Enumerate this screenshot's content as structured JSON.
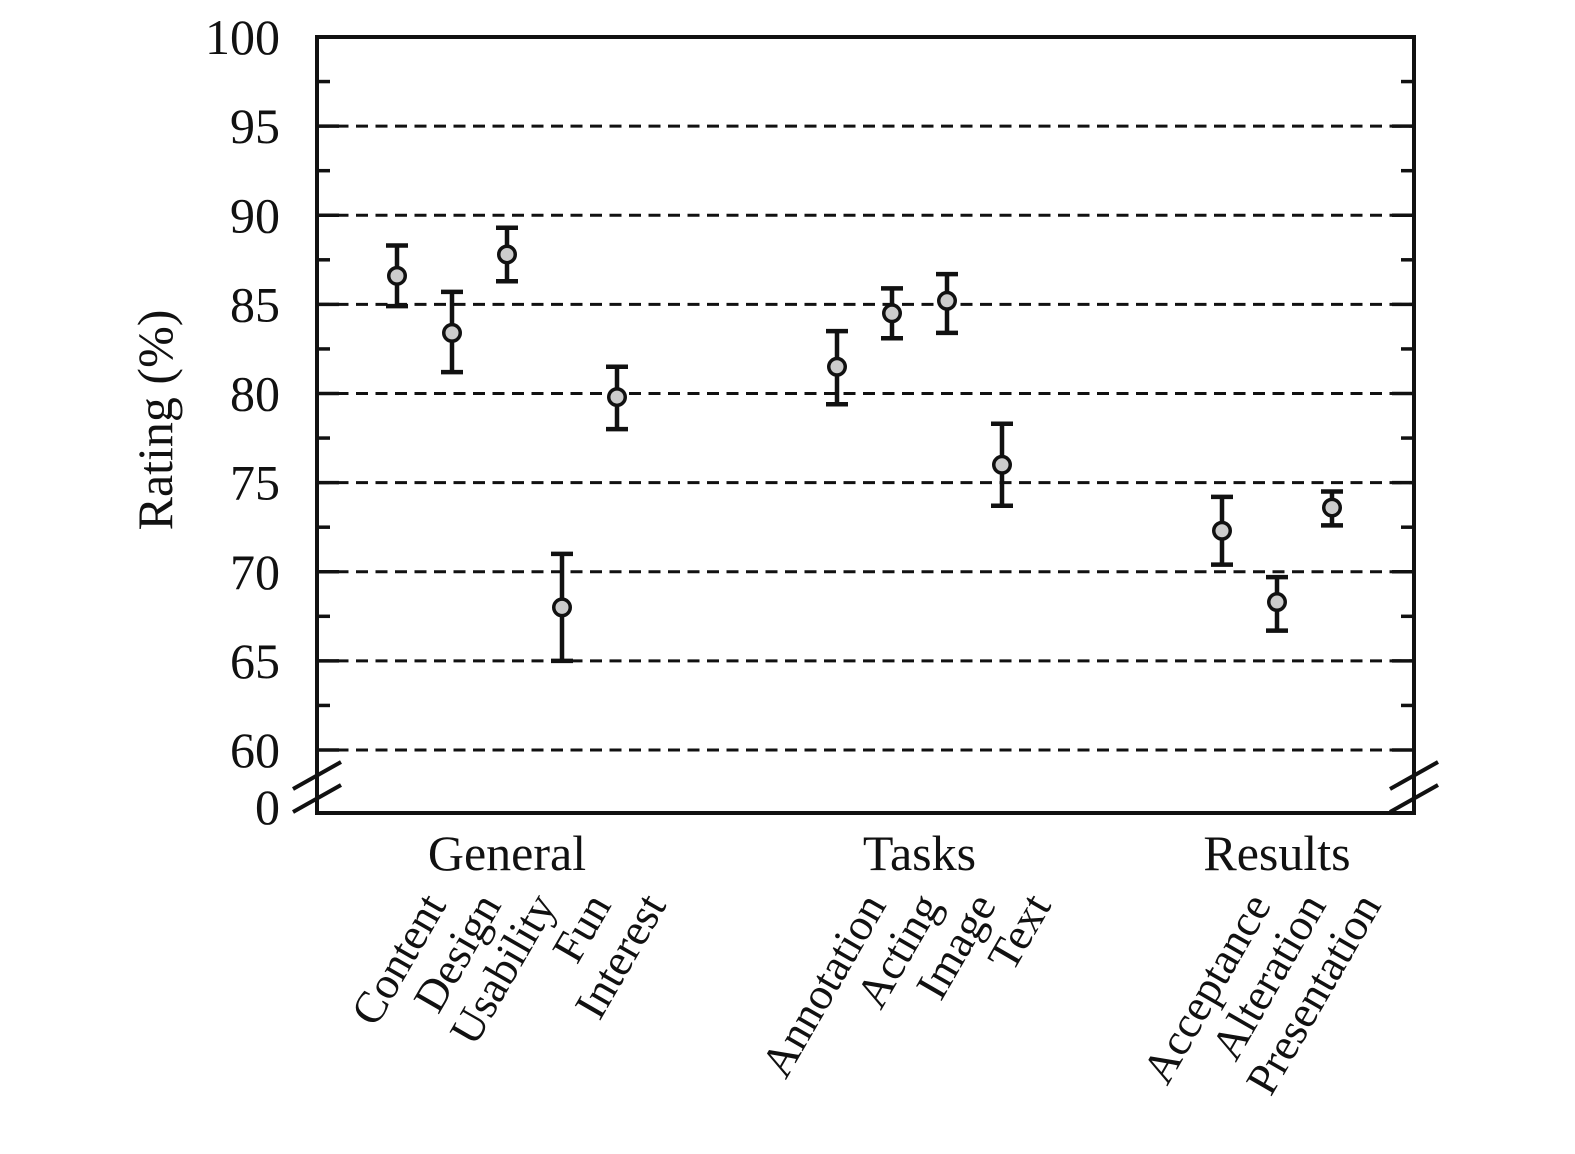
{
  "page": {
    "background_color": "#ffffff",
    "line_color": "#111111"
  },
  "chart_data": {
    "type": "scatter",
    "subtype": "points-with-error-bars",
    "title": "",
    "xlabel": "",
    "ylabel": "Rating (%)",
    "legend": "none",
    "grid": "horizontal-dashed",
    "marker": {
      "shape": "circle",
      "fill": "#cccccc",
      "stroke": "#111111"
    },
    "y_axis": {
      "display_min": 60,
      "display_max": 100,
      "major_ticks": [
        100,
        95,
        90,
        85,
        80,
        75,
        70,
        65,
        60
      ],
      "major_tick_labels": [
        "100",
        "95",
        "90",
        "85",
        "80",
        "75",
        "70",
        "65",
        "60"
      ],
      "minor_ticks": [
        97.5,
        92.5,
        87.5,
        82.5,
        77.5,
        72.5,
        67.5,
        62.5
      ],
      "gridline_values": [
        95,
        90,
        85,
        80,
        75,
        70,
        65,
        60
      ],
      "axis_break": {
        "present": true,
        "below_value": 60,
        "bottom_label": "0"
      }
    },
    "groups": [
      {
        "label": "General",
        "items": [
          {
            "label": "Content",
            "value": 86.6,
            "err_low": 84.9,
            "err_high": 88.3
          },
          {
            "label": "Design",
            "value": 83.4,
            "err_low": 81.2,
            "err_high": 85.7
          },
          {
            "label": "Usability",
            "value": 87.8,
            "err_low": 86.3,
            "err_high": 89.3
          },
          {
            "label": "Fun",
            "value": 68.0,
            "err_low": 65.0,
            "err_high": 71.0
          },
          {
            "label": "Interest",
            "value": 79.8,
            "err_low": 78.0,
            "err_high": 81.5
          }
        ]
      },
      {
        "label": "Tasks",
        "items": [
          {
            "label": "Annotation",
            "value": 81.5,
            "err_low": 79.4,
            "err_high": 83.5
          },
          {
            "label": "Acting",
            "value": 84.5,
            "err_low": 83.1,
            "err_high": 85.9
          },
          {
            "label": "Image",
            "value": 85.2,
            "err_low": 83.4,
            "err_high": 86.7
          },
          {
            "label": "Text",
            "value": 76.0,
            "err_low": 73.7,
            "err_high": 78.3
          }
        ]
      },
      {
        "label": "Results",
        "items": [
          {
            "label": "Acceptance",
            "value": 72.3,
            "err_low": 70.4,
            "err_high": 74.2
          },
          {
            "label": "Alteration",
            "value": 68.3,
            "err_low": 66.7,
            "err_high": 69.7
          },
          {
            "label": "Presentation",
            "value": 73.6,
            "err_low": 72.6,
            "err_high": 74.5
          }
        ]
      }
    ]
  }
}
